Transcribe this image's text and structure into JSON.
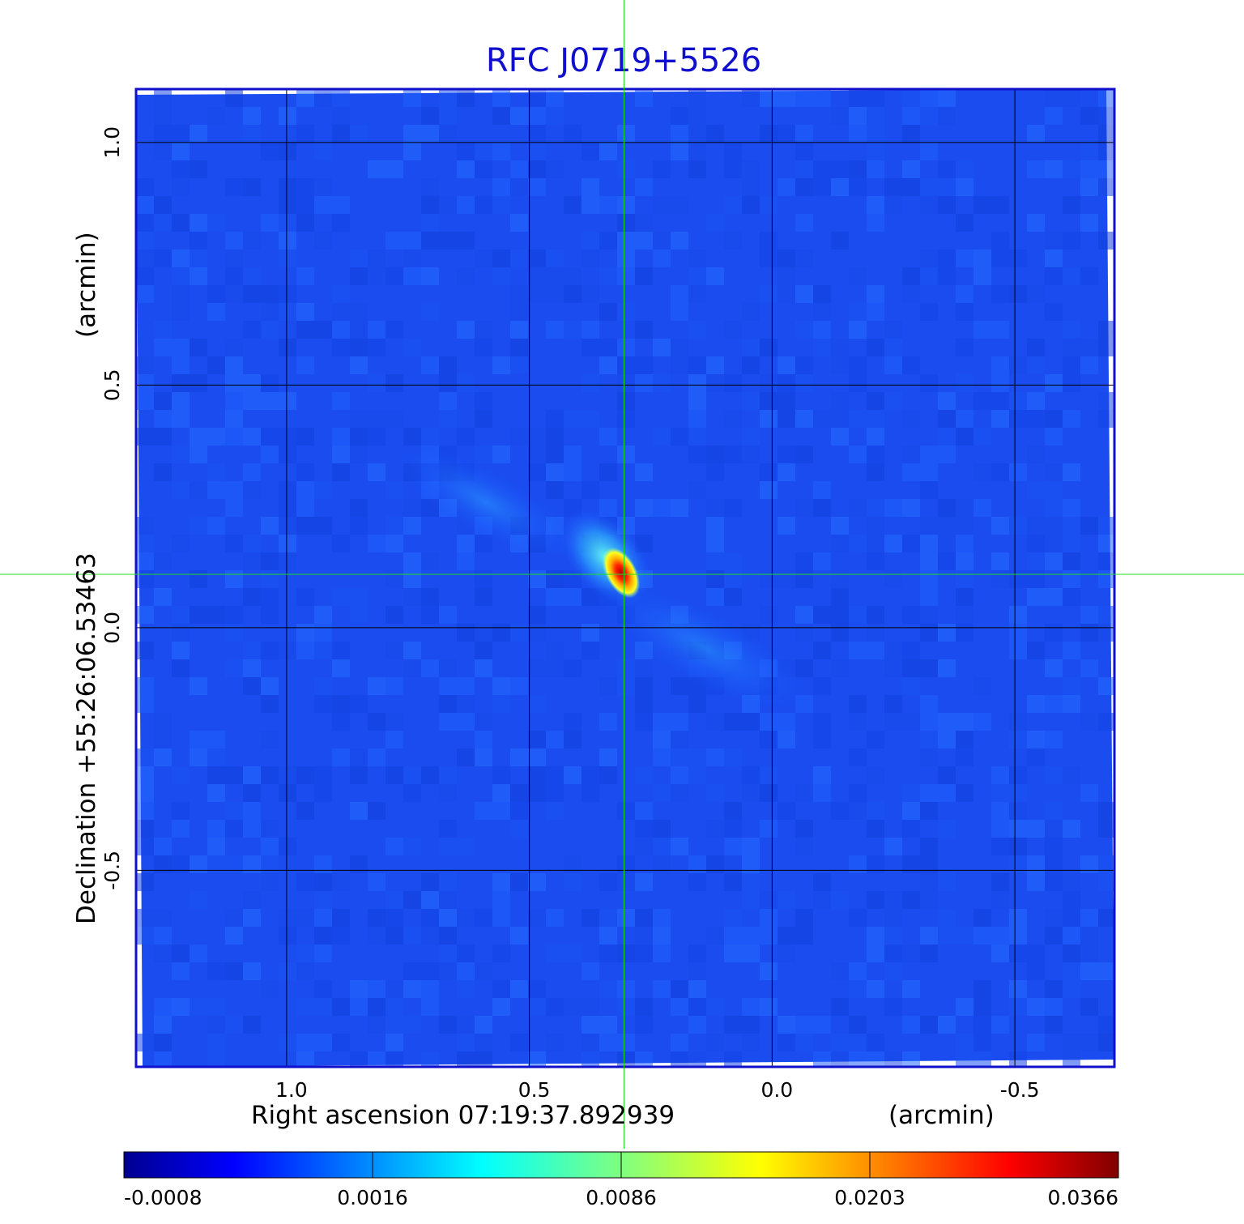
{
  "chart_data": {
    "type": "heatmap",
    "title": "RFC J0719+5526",
    "xlabel": "Right ascension  07:19:37.892939",
    "xunit": "(arcmin)",
    "ylabel": "Declination  +55:26:06.53463",
    "yunit": "(arcmin)",
    "x_axis": {
      "direction": "decreasing",
      "range": [
        1.31,
        -0.705
      ],
      "ticks": [
        1.0,
        0.5,
        0.0,
        -0.5
      ],
      "tick_labels": [
        "1.0",
        "0.5",
        "0.0",
        "-0.5"
      ]
    },
    "y_axis": {
      "range": [
        -0.905,
        1.11
      ],
      "ticks": [
        -0.5,
        0.0,
        0.5,
        1.0
      ],
      "tick_labels": [
        "-0.5",
        "0.0",
        "0.5",
        "1.0"
      ]
    },
    "grid": true,
    "crosshair": {
      "x": 0.305,
      "y": 0.11,
      "color": "#22dd22"
    },
    "source": {
      "peak_x": 0.305,
      "peak_y": 0.11,
      "peak_value": 0.0366,
      "extent": "compact, elongated toward upper-left and lower-right"
    },
    "colorbar": {
      "position": "bottom",
      "colormap": "jet",
      "tick_labels": [
        "-0.0008",
        "0.0016",
        "0.0086",
        "0.0203",
        "0.0366"
      ],
      "min": -0.0008,
      "max": 0.0366
    },
    "background_level": 0.0003
  }
}
